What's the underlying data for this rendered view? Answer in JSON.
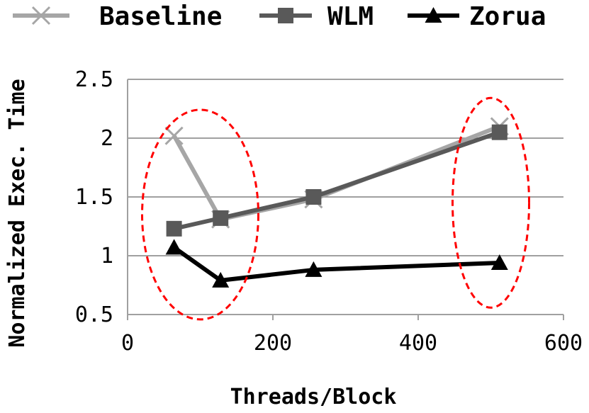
{
  "chart_data": {
    "type": "line",
    "xlabel": "Threads/Block",
    "ylabel": "Normalized Exec. Time",
    "xlim": [
      0,
      600
    ],
    "ylim": [
      0.5,
      2.5
    ],
    "xticks": [
      "0",
      "200",
      "400",
      "600"
    ],
    "yticks": [
      "0.5",
      "1",
      "1.5",
      "2",
      "2.5"
    ],
    "grid": "horizontal",
    "legend_position": "top",
    "series": [
      {
        "name": "Baseline",
        "color": "#a6a6a6",
        "marker": "x",
        "x": [
          64,
          128,
          256,
          512
        ],
        "y": [
          2.02,
          1.31,
          1.48,
          2.1
        ]
      },
      {
        "name": "WLM",
        "color": "#595959",
        "marker": "square",
        "x": [
          64,
          128,
          256,
          512
        ],
        "y": [
          1.23,
          1.32,
          1.5,
          2.05
        ]
      },
      {
        "name": "Zorua",
        "color": "#000000",
        "marker": "triangle",
        "x": [
          64,
          128,
          256,
          512
        ],
        "y": [
          1.07,
          0.79,
          0.88,
          0.94
        ]
      }
    ],
    "annotations": [
      {
        "shape": "dashed-ellipse",
        "color": "#ff0000",
        "center_x": 100,
        "center_y": 1.35
      },
      {
        "shape": "dashed-ellipse",
        "color": "#ff0000",
        "center_x": 500,
        "center_y": 1.45
      }
    ]
  }
}
